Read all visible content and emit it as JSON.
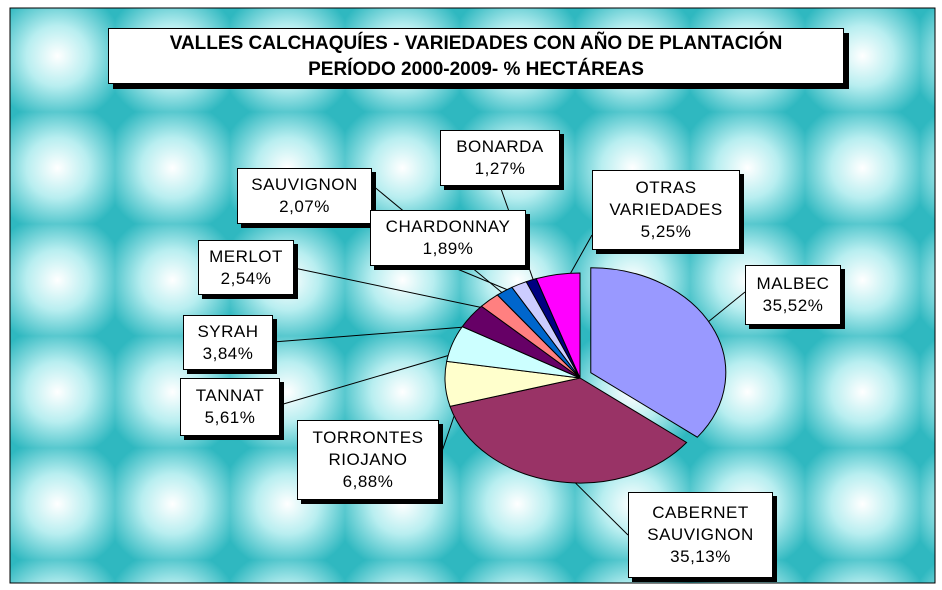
{
  "chart_data": {
    "type": "pie",
    "title": "VALLES CALCHAQUÍES - VARIEDADES CON AÑO DE PLANTACIÓN",
    "subtitle": "PERÍODO 2000-2009- % HECTÁREAS",
    "categories": [
      "MALBEC",
      "CABERNET SAUVIGNON",
      "TORRONTES RIOJANO",
      "TANNAT",
      "SYRAH",
      "MERLOT",
      "SAUVIGNON",
      "CHARDONNAY",
      "BONARDA",
      "OTRAS VARIEDADES"
    ],
    "values": [
      35.52,
      35.13,
      6.88,
      5.61,
      3.84,
      2.54,
      2.07,
      1.89,
      1.27,
      5.25
    ],
    "value_labels": [
      "35,52%",
      "35,13%",
      "6,88%",
      "5,61%",
      "3,84%",
      "2,54%",
      "2,07%",
      "1,89%",
      "1,27%",
      "5,25%"
    ],
    "colors": [
      "#9999ff",
      "#993366",
      "#ffffcc",
      "#ccffff",
      "#660066",
      "#ff8080",
      "#0066cc",
      "#ccccff",
      "#000080",
      "#ff00ff"
    ]
  }
}
